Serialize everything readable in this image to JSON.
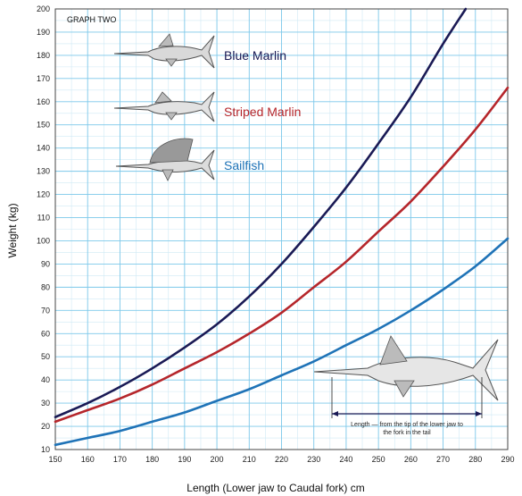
{
  "chart_data": {
    "type": "line",
    "title": "GRAPH TWO",
    "xlabel": "Length (Lower jaw to Caudal fork) cm",
    "ylabel": "Weight (kg)",
    "xlim": [
      150,
      290
    ],
    "ylim": [
      10,
      200
    ],
    "x_ticks": [
      150,
      160,
      170,
      180,
      190,
      200,
      210,
      220,
      230,
      240,
      250,
      260,
      270,
      280,
      290
    ],
    "y_ticks": [
      10,
      20,
      30,
      40,
      50,
      60,
      70,
      80,
      90,
      100,
      110,
      120,
      130,
      140,
      150,
      160,
      170,
      180,
      190,
      200
    ],
    "grid": true,
    "legend_position": "top-left",
    "series": [
      {
        "name": "Blue Marlin",
        "color": "#1a1a55",
        "x": [
          150,
          160,
          170,
          180,
          190,
          200,
          210,
          220,
          230,
          240,
          250,
          260,
          270,
          277
        ],
        "y": [
          24,
          30,
          37,
          45,
          54,
          64,
          76,
          90,
          106,
          123,
          142,
          162,
          185,
          200
        ]
      },
      {
        "name": "Striped Marlin",
        "color": "#b5262b",
        "x": [
          150,
          160,
          170,
          180,
          190,
          200,
          210,
          220,
          230,
          240,
          250,
          260,
          270,
          280,
          290
        ],
        "y": [
          22,
          27,
          32,
          38,
          45,
          52,
          60,
          69,
          80,
          91,
          104,
          117,
          132,
          148,
          166
        ]
      },
      {
        "name": "Sailfish",
        "color": "#1f73b7",
        "x": [
          150,
          160,
          170,
          180,
          190,
          200,
          210,
          220,
          230,
          240,
          250,
          260,
          270,
          280,
          290
        ],
        "y": [
          12,
          15,
          18,
          22,
          26,
          31,
          36,
          42,
          48,
          55,
          62,
          70,
          79,
          89,
          101
        ]
      }
    ],
    "annotation": {
      "line1": "Length — from the tip of the lower jaw to",
      "line2": "the fork in the tail"
    }
  }
}
